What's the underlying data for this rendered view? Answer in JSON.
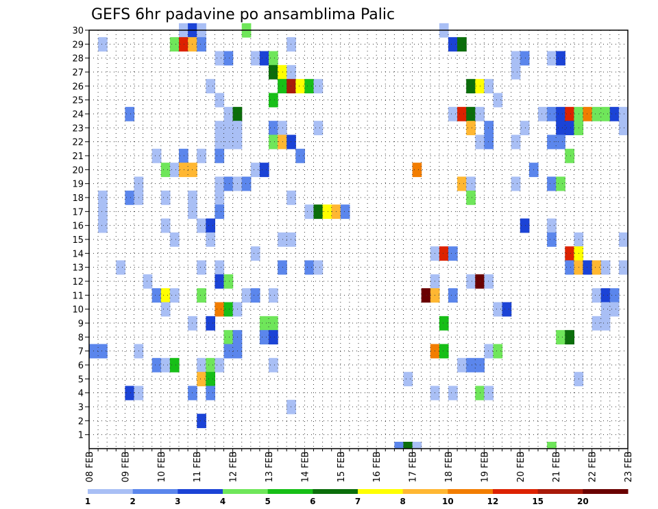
{
  "chart_data": {
    "type": "heatmap",
    "title": "GEFS 6hr padavine po ansamblima Palic",
    "x_tick_labels": [
      "08 FEB",
      "09 FEB",
      "10 FEB",
      "11 FEB",
      "12 FEB",
      "13 FEB",
      "14 FEB",
      "15 FEB",
      "16 FEB",
      "17 FEB",
      "18 FEB",
      "19 FEB",
      "20 FEB",
      "21 FEB",
      "22 FEB",
      "23 FEB"
    ],
    "y_tick_labels": [
      1,
      2,
      3,
      4,
      5,
      6,
      7,
      8,
      9,
      10,
      11,
      12,
      13,
      14,
      15,
      16,
      17,
      18,
      19,
      20,
      21,
      22,
      23,
      24,
      25,
      26,
      27,
      28,
      29,
      30
    ],
    "y_range": [
      0,
      30
    ],
    "steps_per_day": 4,
    "colorbar": {
      "labels": [
        "1",
        "2",
        "3",
        "4",
        "5",
        "6",
        "7",
        "8",
        "10",
        "12",
        "15",
        "20"
      ],
      "colors": [
        "#a9bff5",
        "#5b86ec",
        "#1b43d6",
        "#6fe65a",
        "#17bf17",
        "#0b6e0b",
        "#ffff00",
        "#ffb732",
        "#f27d00",
        "#dd2200",
        "#a81a0a",
        "#6a0000"
      ]
    },
    "cells": [
      {
        "m": 30,
        "s": 10,
        "c": 1
      },
      {
        "m": 30,
        "s": 11,
        "c": 3
      },
      {
        "m": 30,
        "s": 12,
        "c": 1
      },
      {
        "m": 30,
        "s": 17,
        "c": 4
      },
      {
        "m": 30,
        "s": 39,
        "c": 1
      },
      {
        "m": 29,
        "s": 1,
        "c": 1
      },
      {
        "m": 29,
        "s": 9,
        "c": 4
      },
      {
        "m": 29,
        "s": 10,
        "c": 10
      },
      {
        "m": 29,
        "s": 11,
        "c": 8
      },
      {
        "m": 29,
        "s": 12,
        "c": 2
      },
      {
        "m": 29,
        "s": 22,
        "c": 1
      },
      {
        "m": 29,
        "s": 40,
        "c": 3
      },
      {
        "m": 29,
        "s": 41,
        "c": 6
      },
      {
        "m": 28,
        "s": 14,
        "c": 1
      },
      {
        "m": 28,
        "s": 15,
        "c": 2
      },
      {
        "m": 28,
        "s": 18,
        "c": 1
      },
      {
        "m": 28,
        "s": 19,
        "c": 3
      },
      {
        "m": 28,
        "s": 20,
        "c": 4
      },
      {
        "m": 28,
        "s": 47,
        "c": 1
      },
      {
        "m": 28,
        "s": 48,
        "c": 2
      },
      {
        "m": 28,
        "s": 51,
        "c": 1
      },
      {
        "m": 28,
        "s": 52,
        "c": 3
      },
      {
        "m": 27,
        "s": 20,
        "c": 6
      },
      {
        "m": 27,
        "s": 21,
        "c": 7
      },
      {
        "m": 27,
        "s": 22,
        "c": 1
      },
      {
        "m": 27,
        "s": 47,
        "c": 1
      },
      {
        "m": 26,
        "s": 13,
        "c": 1
      },
      {
        "m": 26,
        "s": 21,
        "c": 5
      },
      {
        "m": 26,
        "s": 22,
        "c": 11
      },
      {
        "m": 26,
        "s": 23,
        "c": 7
      },
      {
        "m": 26,
        "s": 24,
        "c": 5
      },
      {
        "m": 26,
        "s": 25,
        "c": 1
      },
      {
        "m": 26,
        "s": 42,
        "c": 6
      },
      {
        "m": 26,
        "s": 43,
        "c": 7
      },
      {
        "m": 26,
        "s": 44,
        "c": 1
      },
      {
        "m": 25,
        "s": 14,
        "c": 1
      },
      {
        "m": 25,
        "s": 20,
        "c": 5
      },
      {
        "m": 25,
        "s": 45,
        "c": 1
      },
      {
        "m": 24,
        "s": 4,
        "c": 2
      },
      {
        "m": 24,
        "s": 15,
        "c": 1
      },
      {
        "m": 24,
        "s": 16,
        "c": 6
      },
      {
        "m": 24,
        "s": 40,
        "c": 1
      },
      {
        "m": 24,
        "s": 41,
        "c": 10
      },
      {
        "m": 24,
        "s": 42,
        "c": 6
      },
      {
        "m": 24,
        "s": 43,
        "c": 1
      },
      {
        "m": 24,
        "s": 50,
        "c": 1
      },
      {
        "m": 24,
        "s": 51,
        "c": 2
      },
      {
        "m": 24,
        "s": 52,
        "c": 3
      },
      {
        "m": 24,
        "s": 53,
        "c": 10
      },
      {
        "m": 24,
        "s": 54,
        "c": 4
      },
      {
        "m": 24,
        "s": 55,
        "c": 9
      },
      {
        "m": 24,
        "s": 56,
        "c": 4
      },
      {
        "m": 24,
        "s": 57,
        "c": 4
      },
      {
        "m": 24,
        "s": 58,
        "c": 3
      },
      {
        "m": 24,
        "s": 59,
        "c": 1
      },
      {
        "m": 23,
        "s": 14,
        "c": 1
      },
      {
        "m": 23,
        "s": 15,
        "c": 1
      },
      {
        "m": 23,
        "s": 16,
        "c": 1
      },
      {
        "m": 23,
        "s": 20,
        "c": 2
      },
      {
        "m": 23,
        "s": 21,
        "c": 1
      },
      {
        "m": 23,
        "s": 25,
        "c": 1
      },
      {
        "m": 23,
        "s": 42,
        "c": 8
      },
      {
        "m": 23,
        "s": 44,
        "c": 2
      },
      {
        "m": 23,
        "s": 48,
        "c": 1
      },
      {
        "m": 23,
        "s": 52,
        "c": 3
      },
      {
        "m": 23,
        "s": 53,
        "c": 3
      },
      {
        "m": 23,
        "s": 54,
        "c": 4
      },
      {
        "m": 23,
        "s": 59,
        "c": 1
      },
      {
        "m": 22,
        "s": 14,
        "c": 1
      },
      {
        "m": 22,
        "s": 15,
        "c": 1
      },
      {
        "m": 22,
        "s": 16,
        "c": 1
      },
      {
        "m": 22,
        "s": 20,
        "c": 4
      },
      {
        "m": 22,
        "s": 21,
        "c": 8
      },
      {
        "m": 22,
        "s": 22,
        "c": 3
      },
      {
        "m": 22,
        "s": 43,
        "c": 1
      },
      {
        "m": 22,
        "s": 44,
        "c": 2
      },
      {
        "m": 22,
        "s": 47,
        "c": 1
      },
      {
        "m": 22,
        "s": 51,
        "c": 2
      },
      {
        "m": 22,
        "s": 52,
        "c": 2
      },
      {
        "m": 21,
        "s": 7,
        "c": 1
      },
      {
        "m": 21,
        "s": 10,
        "c": 2
      },
      {
        "m": 21,
        "s": 12,
        "c": 1
      },
      {
        "m": 21,
        "s": 14,
        "c": 2
      },
      {
        "m": 21,
        "s": 23,
        "c": 2
      },
      {
        "m": 21,
        "s": 53,
        "c": 4
      },
      {
        "m": 20,
        "s": 8,
        "c": 4
      },
      {
        "m": 20,
        "s": 9,
        "c": 1
      },
      {
        "m": 20,
        "s": 10,
        "c": 8
      },
      {
        "m": 20,
        "s": 11,
        "c": 8
      },
      {
        "m": 20,
        "s": 18,
        "c": 1
      },
      {
        "m": 20,
        "s": 19,
        "c": 3
      },
      {
        "m": 20,
        "s": 36,
        "c": 9
      },
      {
        "m": 20,
        "s": 49,
        "c": 2
      },
      {
        "m": 19,
        "s": 5,
        "c": 1
      },
      {
        "m": 19,
        "s": 14,
        "c": 1
      },
      {
        "m": 19,
        "s": 15,
        "c": 2
      },
      {
        "m": 19,
        "s": 16,
        "c": 1
      },
      {
        "m": 19,
        "s": 17,
        "c": 2
      },
      {
        "m": 19,
        "s": 41,
        "c": 8
      },
      {
        "m": 19,
        "s": 42,
        "c": 1
      },
      {
        "m": 19,
        "s": 47,
        "c": 1
      },
      {
        "m": 19,
        "s": 51,
        "c": 2
      },
      {
        "m": 19,
        "s": 52,
        "c": 4
      },
      {
        "m": 18,
        "s": 1,
        "c": 1
      },
      {
        "m": 18,
        "s": 4,
        "c": 2
      },
      {
        "m": 18,
        "s": 5,
        "c": 1
      },
      {
        "m": 18,
        "s": 8,
        "c": 1
      },
      {
        "m": 18,
        "s": 11,
        "c": 1
      },
      {
        "m": 18,
        "s": 14,
        "c": 1
      },
      {
        "m": 18,
        "s": 22,
        "c": 1
      },
      {
        "m": 18,
        "s": 42,
        "c": 4
      },
      {
        "m": 17,
        "s": 1,
        "c": 1
      },
      {
        "m": 17,
        "s": 11,
        "c": 1
      },
      {
        "m": 17,
        "s": 14,
        "c": 2
      },
      {
        "m": 17,
        "s": 24,
        "c": 1
      },
      {
        "m": 17,
        "s": 25,
        "c": 6
      },
      {
        "m": 17,
        "s": 26,
        "c": 7
      },
      {
        "m": 17,
        "s": 27,
        "c": 8
      },
      {
        "m": 17,
        "s": 28,
        "c": 2
      },
      {
        "m": 16,
        "s": 1,
        "c": 1
      },
      {
        "m": 16,
        "s": 8,
        "c": 1
      },
      {
        "m": 16,
        "s": 12,
        "c": 1
      },
      {
        "m": 16,
        "s": 13,
        "c": 3
      },
      {
        "m": 16,
        "s": 48,
        "c": 3
      },
      {
        "m": 16,
        "s": 51,
        "c": 1
      },
      {
        "m": 15,
        "s": 9,
        "c": 1
      },
      {
        "m": 15,
        "s": 13,
        "c": 1
      },
      {
        "m": 15,
        "s": 21,
        "c": 1
      },
      {
        "m": 15,
        "s": 22,
        "c": 1
      },
      {
        "m": 15,
        "s": 51,
        "c": 2
      },
      {
        "m": 15,
        "s": 54,
        "c": 1
      },
      {
        "m": 15,
        "s": 59,
        "c": 1
      },
      {
        "m": 14,
        "s": 18,
        "c": 1
      },
      {
        "m": 14,
        "s": 38,
        "c": 1
      },
      {
        "m": 14,
        "s": 39,
        "c": 10
      },
      {
        "m": 14,
        "s": 40,
        "c": 2
      },
      {
        "m": 14,
        "s": 53,
        "c": 10
      },
      {
        "m": 14,
        "s": 54,
        "c": 7
      },
      {
        "m": 13,
        "s": 3,
        "c": 1
      },
      {
        "m": 13,
        "s": 12,
        "c": 1
      },
      {
        "m": 13,
        "s": 14,
        "c": 1
      },
      {
        "m": 13,
        "s": 21,
        "c": 2
      },
      {
        "m": 13,
        "s": 24,
        "c": 2
      },
      {
        "m": 13,
        "s": 25,
        "c": 1
      },
      {
        "m": 13,
        "s": 53,
        "c": 2
      },
      {
        "m": 13,
        "s": 54,
        "c": 8
      },
      {
        "m": 13,
        "s": 55,
        "c": 3
      },
      {
        "m": 13,
        "s": 56,
        "c": 8
      },
      {
        "m": 13,
        "s": 57,
        "c": 1
      },
      {
        "m": 13,
        "s": 59,
        "c": 1
      },
      {
        "m": 12,
        "s": 6,
        "c": 1
      },
      {
        "m": 12,
        "s": 14,
        "c": 3
      },
      {
        "m": 12,
        "s": 15,
        "c": 4
      },
      {
        "m": 12,
        "s": 38,
        "c": 1
      },
      {
        "m": 12,
        "s": 42,
        "c": 1
      },
      {
        "m": 12,
        "s": 43,
        "c": 12
      },
      {
        "m": 12,
        "s": 44,
        "c": 1
      },
      {
        "m": 11,
        "s": 7,
        "c": 2
      },
      {
        "m": 11,
        "s": 8,
        "c": 7
      },
      {
        "m": 11,
        "s": 9,
        "c": 1
      },
      {
        "m": 11,
        "s": 12,
        "c": 4
      },
      {
        "m": 11,
        "s": 17,
        "c": 1
      },
      {
        "m": 11,
        "s": 18,
        "c": 2
      },
      {
        "m": 11,
        "s": 20,
        "c": 1
      },
      {
        "m": 11,
        "s": 37,
        "c": 12
      },
      {
        "m": 11,
        "s": 38,
        "c": 8
      },
      {
        "m": 11,
        "s": 40,
        "c": 2
      },
      {
        "m": 11,
        "s": 56,
        "c": 1
      },
      {
        "m": 11,
        "s": 57,
        "c": 3
      },
      {
        "m": 11,
        "s": 58,
        "c": 2
      },
      {
        "m": 10,
        "s": 8,
        "c": 1
      },
      {
        "m": 10,
        "s": 14,
        "c": 9
      },
      {
        "m": 10,
        "s": 15,
        "c": 5
      },
      {
        "m": 10,
        "s": 16,
        "c": 1
      },
      {
        "m": 10,
        "s": 45,
        "c": 1
      },
      {
        "m": 10,
        "s": 46,
        "c": 3
      },
      {
        "m": 10,
        "s": 57,
        "c": 1
      },
      {
        "m": 10,
        "s": 58,
        "c": 1
      },
      {
        "m": 9,
        "s": 11,
        "c": 1
      },
      {
        "m": 9,
        "s": 13,
        "c": 3
      },
      {
        "m": 9,
        "s": 19,
        "c": 4
      },
      {
        "m": 9,
        "s": 20,
        "c": 4
      },
      {
        "m": 9,
        "s": 39,
        "c": 5
      },
      {
        "m": 9,
        "s": 56,
        "c": 1
      },
      {
        "m": 9,
        "s": 57,
        "c": 1
      },
      {
        "m": 8,
        "s": 15,
        "c": 4
      },
      {
        "m": 8,
        "s": 16,
        "c": 2
      },
      {
        "m": 8,
        "s": 19,
        "c": 2
      },
      {
        "m": 8,
        "s": 20,
        "c": 3
      },
      {
        "m": 8,
        "s": 52,
        "c": 4
      },
      {
        "m": 8,
        "s": 53,
        "c": 6
      },
      {
        "m": 7,
        "s": 0,
        "c": 2
      },
      {
        "m": 7,
        "s": 1,
        "c": 2
      },
      {
        "m": 7,
        "s": 5,
        "c": 1
      },
      {
        "m": 7,
        "s": 15,
        "c": 2
      },
      {
        "m": 7,
        "s": 16,
        "c": 2
      },
      {
        "m": 7,
        "s": 38,
        "c": 9
      },
      {
        "m": 7,
        "s": 39,
        "c": 5
      },
      {
        "m": 7,
        "s": 44,
        "c": 1
      },
      {
        "m": 7,
        "s": 45,
        "c": 4
      },
      {
        "m": 6,
        "s": 7,
        "c": 2
      },
      {
        "m": 6,
        "s": 8,
        "c": 1
      },
      {
        "m": 6,
        "s": 9,
        "c": 5
      },
      {
        "m": 6,
        "s": 12,
        "c": 1
      },
      {
        "m": 6,
        "s": 13,
        "c": 4
      },
      {
        "m": 6,
        "s": 14,
        "c": 1
      },
      {
        "m": 6,
        "s": 20,
        "c": 1
      },
      {
        "m": 6,
        "s": 41,
        "c": 1
      },
      {
        "m": 6,
        "s": 42,
        "c": 2
      },
      {
        "m": 6,
        "s": 43,
        "c": 2
      },
      {
        "m": 5,
        "s": 12,
        "c": 8
      },
      {
        "m": 5,
        "s": 13,
        "c": 5
      },
      {
        "m": 5,
        "s": 35,
        "c": 1
      },
      {
        "m": 5,
        "s": 54,
        "c": 1
      },
      {
        "m": 4,
        "s": 4,
        "c": 3
      },
      {
        "m": 4,
        "s": 5,
        "c": 1
      },
      {
        "m": 4,
        "s": 11,
        "c": 2
      },
      {
        "m": 4,
        "s": 13,
        "c": 2
      },
      {
        "m": 4,
        "s": 38,
        "c": 1
      },
      {
        "m": 4,
        "s": 40,
        "c": 1
      },
      {
        "m": 4,
        "s": 43,
        "c": 4
      },
      {
        "m": 4,
        "s": 44,
        "c": 1
      },
      {
        "m": 3,
        "s": 22,
        "c": 1
      },
      {
        "m": 2,
        "s": 12,
        "c": 3
      }
    ],
    "bottom_strip": [
      {
        "s": 34,
        "c": 2
      },
      {
        "s": 35,
        "c": 6
      },
      {
        "s": 36,
        "c": 1
      },
      {
        "s": 51,
        "c": 4
      }
    ]
  }
}
